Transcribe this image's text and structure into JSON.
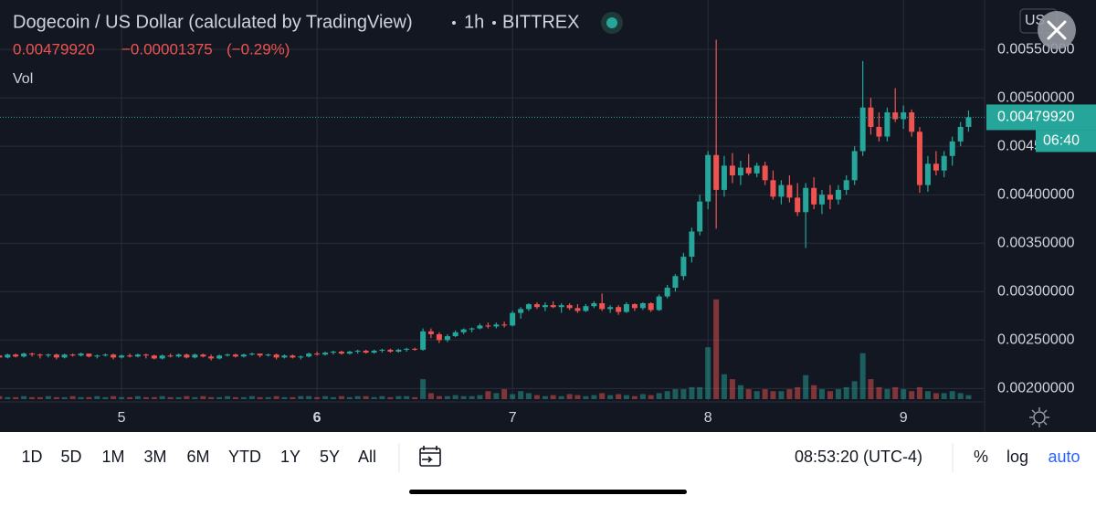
{
  "header": {
    "title": "Dogecoin / US Dollar (calculated by TradingView)",
    "interval": "1h",
    "exchange": "BITTREX",
    "change": "−0.00001375",
    "change_pct": "(−0.29%)",
    "volume_label": "Vol",
    "currency": "US",
    "countdown": "06:40"
  },
  "toolbar": {
    "ranges": [
      "1D",
      "5D",
      "1M",
      "3M",
      "6M",
      "YTD",
      "1Y",
      "5Y",
      "All"
    ],
    "clock": "08:53:20 (UTC-4)",
    "scale_options": [
      "%",
      "log",
      "auto"
    ]
  },
  "chart_data": {
    "type": "candlestick",
    "grid": true,
    "up_color": "#26a69a",
    "down_color": "#ef5350",
    "xlim": [
      4.378,
      9.415
    ],
    "xticks": [
      5,
      6,
      7,
      8,
      9
    ],
    "ylim": [
      0.00189,
      0.00601
    ],
    "yticks": [
      {
        "value": 0.002,
        "label": "0.00200000"
      },
      {
        "value": 0.0025,
        "label": "0.00250000"
      },
      {
        "value": 0.003,
        "label": "0.00300000"
      },
      {
        "value": 0.0035,
        "label": "0.00350000"
      },
      {
        "value": 0.004,
        "label": "0.00400000"
      },
      {
        "value": 0.0045,
        "label": "0.00450000"
      },
      {
        "value": 0.005,
        "label": "0.00500000"
      },
      {
        "value": 0.0055,
        "label": "0.00550000"
      }
    ],
    "last_price": {
      "value": 0.0047992,
      "label": "0.00479920"
    },
    "y2lim": [
      0,
      400
    ],
    "x": [
      4.375,
      4.417,
      4.458,
      4.5,
      4.542,
      4.583,
      4.625,
      4.667,
      4.708,
      4.75,
      4.792,
      4.833,
      4.875,
      4.917,
      4.958,
      5,
      5.042,
      5.083,
      5.125,
      5.167,
      5.208,
      5.25,
      5.292,
      5.333,
      5.375,
      5.417,
      5.458,
      5.5,
      5.542,
      5.583,
      5.625,
      5.667,
      5.708,
      5.75,
      5.792,
      5.833,
      5.875,
      5.917,
      5.958,
      6,
      6.042,
      6.083,
      6.125,
      6.167,
      6.208,
      6.25,
      6.292,
      6.333,
      6.375,
      6.417,
      6.458,
      6.5,
      6.542,
      6.583,
      6.625,
      6.667,
      6.708,
      6.75,
      6.792,
      6.833,
      6.875,
      6.917,
      6.958,
      7,
      7.042,
      7.083,
      7.125,
      7.167,
      7.208,
      7.25,
      7.292,
      7.333,
      7.375,
      7.417,
      7.458,
      7.5,
      7.542,
      7.583,
      7.625,
      7.667,
      7.708,
      7.75,
      7.792,
      7.833,
      7.875,
      7.917,
      7.958,
      8,
      8.042,
      8.083,
      8.125,
      8.167,
      8.208,
      8.25,
      8.292,
      8.333,
      8.375,
      8.417,
      8.458,
      8.5,
      8.542,
      8.583,
      8.625,
      8.667,
      8.708,
      8.75,
      8.792,
      8.833,
      8.875,
      8.917,
      8.958,
      9,
      9.042,
      9.083,
      9.125,
      9.167,
      9.208,
      9.25,
      9.292,
      9.333
    ],
    "ohlc": [
      [
        0.00234,
        0.00236,
        0.0023,
        0.00232
      ],
      [
        0.00232,
        0.00236,
        0.00231,
        0.00235
      ],
      [
        0.00235,
        0.00236,
        0.00232,
        0.00233
      ],
      [
        0.00233,
        0.00237,
        0.00232,
        0.00236
      ],
      [
        0.00236,
        0.00237,
        0.00233,
        0.00235
      ],
      [
        0.00235,
        0.00236,
        0.00231,
        0.00234
      ],
      [
        0.00234,
        0.00236,
        0.00232,
        0.00235
      ],
      [
        0.00235,
        0.00236,
        0.0023,
        0.00232
      ],
      [
        0.00232,
        0.00236,
        0.00231,
        0.00235
      ],
      [
        0.00235,
        0.00236,
        0.00233,
        0.00234
      ],
      [
        0.00234,
        0.00237,
        0.00233,
        0.00236
      ],
      [
        0.00236,
        0.00236,
        0.00232,
        0.00233
      ],
      [
        0.00233,
        0.00235,
        0.00231,
        0.00234
      ],
      [
        0.00234,
        0.00236,
        0.00233,
        0.00235
      ],
      [
        0.00235,
        0.00236,
        0.0023,
        0.00232
      ],
      [
        0.00232,
        0.00235,
        0.00231,
        0.00234
      ],
      [
        0.00234,
        0.00236,
        0.00232,
        0.00233
      ],
      [
        0.00233,
        0.00236,
        0.00232,
        0.00235
      ],
      [
        0.00235,
        0.00236,
        0.00231,
        0.00234
      ],
      [
        0.00234,
        0.00235,
        0.0023,
        0.00231
      ],
      [
        0.00231,
        0.00235,
        0.0023,
        0.00234
      ],
      [
        0.00234,
        0.00236,
        0.00232,
        0.00233
      ],
      [
        0.00233,
        0.00236,
        0.00232,
        0.00235
      ],
      [
        0.00235,
        0.00236,
        0.00231,
        0.00232
      ],
      [
        0.00232,
        0.00236,
        0.00231,
        0.00235
      ],
      [
        0.00235,
        0.00236,
        0.00232,
        0.00233
      ],
      [
        0.00233,
        0.00235,
        0.00229,
        0.00231
      ],
      [
        0.00231,
        0.00235,
        0.0023,
        0.00234
      ],
      [
        0.00234,
        0.00236,
        0.00233,
        0.00235
      ],
      [
        0.00235,
        0.00236,
        0.00232,
        0.00233
      ],
      [
        0.00233,
        0.00236,
        0.00232,
        0.00235
      ],
      [
        0.00235,
        0.00237,
        0.00234,
        0.00236
      ],
      [
        0.00236,
        0.00236,
        0.00232,
        0.00234
      ],
      [
        0.00234,
        0.00236,
        0.00233,
        0.00235
      ],
      [
        0.00235,
        0.00236,
        0.0023,
        0.00232
      ],
      [
        0.00232,
        0.00235,
        0.00231,
        0.00234
      ],
      [
        0.00234,
        0.00235,
        0.00231,
        0.00232
      ],
      [
        0.00232,
        0.00234,
        0.0023,
        0.00233
      ],
      [
        0.00233,
        0.00237,
        0.00232,
        0.00236
      ],
      [
        0.00236,
        0.00238,
        0.00234,
        0.00235
      ],
      [
        0.00235,
        0.00238,
        0.00234,
        0.00237
      ],
      [
        0.00237,
        0.00239,
        0.00235,
        0.00238
      ],
      [
        0.00238,
        0.00239,
        0.00235,
        0.00236
      ],
      [
        0.00236,
        0.00239,
        0.00235,
        0.00238
      ],
      [
        0.00238,
        0.0024,
        0.00236,
        0.00239
      ],
      [
        0.00239,
        0.0024,
        0.00236,
        0.00237
      ],
      [
        0.00237,
        0.0024,
        0.00236,
        0.00239
      ],
      [
        0.00239,
        0.00241,
        0.00237,
        0.0024
      ],
      [
        0.0024,
        0.00241,
        0.00237,
        0.00238
      ],
      [
        0.00238,
        0.00241,
        0.00237,
        0.0024
      ],
      [
        0.0024,
        0.00242,
        0.00238,
        0.00241
      ],
      [
        0.00241,
        0.00242,
        0.00239,
        0.0024
      ],
      [
        0.0024,
        0.00262,
        0.00239,
        0.00259
      ],
      [
        0.00259,
        0.00262,
        0.00252,
        0.00256
      ],
      [
        0.00256,
        0.00258,
        0.00247,
        0.0025
      ],
      [
        0.0025,
        0.00256,
        0.00248,
        0.00254
      ],
      [
        0.00254,
        0.0026,
        0.00253,
        0.00258
      ],
      [
        0.00258,
        0.00262,
        0.00256,
        0.00261
      ],
      [
        0.00261,
        0.00263,
        0.00258,
        0.00262
      ],
      [
        0.00262,
        0.00267,
        0.00261,
        0.00265
      ],
      [
        0.00265,
        0.00268,
        0.00262,
        0.00264
      ],
      [
        0.00264,
        0.00268,
        0.00262,
        0.00266
      ],
      [
        0.00266,
        0.00269,
        0.00263,
        0.00265
      ],
      [
        0.00265,
        0.0028,
        0.00264,
        0.00278
      ],
      [
        0.00278,
        0.00284,
        0.00272,
        0.00282
      ],
      [
        0.00282,
        0.00288,
        0.0028,
        0.00287
      ],
      [
        0.00287,
        0.00289,
        0.00282,
        0.00284
      ],
      [
        0.00284,
        0.00289,
        0.0028,
        0.00286
      ],
      [
        0.00286,
        0.0029,
        0.00283,
        0.00284
      ],
      [
        0.00284,
        0.00288,
        0.00278,
        0.00286
      ],
      [
        0.00286,
        0.00288,
        0.00281,
        0.00283
      ],
      [
        0.00283,
        0.00287,
        0.00278,
        0.0028
      ],
      [
        0.0028,
        0.00287,
        0.00279,
        0.00285
      ],
      [
        0.00285,
        0.0029,
        0.00283,
        0.00288
      ],
      [
        0.00288,
        0.00298,
        0.0028,
        0.00282
      ],
      [
        0.00282,
        0.00286,
        0.00278,
        0.00284
      ],
      [
        0.00284,
        0.00286,
        0.00276,
        0.00279
      ],
      [
        0.00279,
        0.00289,
        0.00278,
        0.00287
      ],
      [
        0.00287,
        0.00288,
        0.0028,
        0.00283
      ],
      [
        0.00283,
        0.00289,
        0.00281,
        0.00288
      ],
      [
        0.00288,
        0.00289,
        0.00279,
        0.00281
      ],
      [
        0.00281,
        0.00297,
        0.0028,
        0.00295
      ],
      [
        0.00295,
        0.00307,
        0.00293,
        0.00304
      ],
      [
        0.00304,
        0.00318,
        0.003,
        0.00316
      ],
      [
        0.00316,
        0.0034,
        0.00312,
        0.00336
      ],
      [
        0.00336,
        0.00366,
        0.0033,
        0.00362
      ],
      [
        0.00362,
        0.004,
        0.00358,
        0.00393
      ],
      [
        0.00393,
        0.00445,
        0.00385,
        0.00441
      ],
      [
        0.00441,
        0.0056,
        0.00365,
        0.00405
      ],
      [
        0.00405,
        0.0044,
        0.00398,
        0.0043
      ],
      [
        0.0043,
        0.00443,
        0.00412,
        0.0042
      ],
      [
        0.0042,
        0.00435,
        0.0041,
        0.00428
      ],
      [
        0.00428,
        0.00442,
        0.0042,
        0.00422
      ],
      [
        0.00422,
        0.00433,
        0.00418,
        0.0043
      ],
      [
        0.0043,
        0.00434,
        0.0041,
        0.00415
      ],
      [
        0.00415,
        0.00425,
        0.00395,
        0.00398
      ],
      [
        0.00398,
        0.00415,
        0.0039,
        0.0041
      ],
      [
        0.0041,
        0.0042,
        0.00392,
        0.00397
      ],
      [
        0.00397,
        0.00412,
        0.00378,
        0.00382
      ],
      [
        0.00382,
        0.00412,
        0.00345,
        0.00407
      ],
      [
        0.00407,
        0.00418,
        0.00385,
        0.0039
      ],
      [
        0.0039,
        0.00405,
        0.0038,
        0.004
      ],
      [
        0.004,
        0.0041,
        0.00385,
        0.00395
      ],
      [
        0.00395,
        0.0041,
        0.0039,
        0.00405
      ],
      [
        0.00405,
        0.0042,
        0.004,
        0.00415
      ],
      [
        0.00415,
        0.0045,
        0.0041,
        0.00445
      ],
      [
        0.00445,
        0.00538,
        0.0044,
        0.0049
      ],
      [
        0.0049,
        0.005,
        0.00462,
        0.0047
      ],
      [
        0.0047,
        0.00485,
        0.00455,
        0.0046
      ],
      [
        0.0046,
        0.0049,
        0.00455,
        0.00485
      ],
      [
        0.00485,
        0.0051,
        0.00475,
        0.00478
      ],
      [
        0.00478,
        0.00492,
        0.00468,
        0.00485
      ],
      [
        0.00485,
        0.00488,
        0.0046,
        0.00465
      ],
      [
        0.00465,
        0.0047,
        0.00402,
        0.0041
      ],
      [
        0.0041,
        0.0044,
        0.00403,
        0.00432
      ],
      [
        0.00432,
        0.00445,
        0.0042,
        0.00425
      ],
      [
        0.00425,
        0.00445,
        0.00418,
        0.0044
      ],
      [
        0.0044,
        0.0046,
        0.0043,
        0.00455
      ],
      [
        0.00455,
        0.00475,
        0.0045,
        0.0047
      ],
      [
        0.0047,
        0.00487,
        0.00465,
        0.0047992
      ]
    ],
    "volume": {
      "axis": "y2",
      "values": [
        3,
        2,
        2,
        3,
        2,
        2,
        3,
        2,
        2,
        3,
        2,
        2,
        3,
        2,
        3,
        2,
        2,
        3,
        2,
        2,
        3,
        2,
        2,
        3,
        2,
        3,
        2,
        2,
        3,
        2,
        2,
        3,
        2,
        2,
        3,
        2,
        2,
        3,
        3,
        2,
        3,
        2,
        3,
        2,
        3,
        3,
        2,
        3,
        2,
        3,
        3,
        2,
        20,
        6,
        3,
        3,
        4,
        3,
        3,
        4,
        8,
        6,
        10,
        5,
        8,
        6,
        4,
        3,
        4,
        3,
        5,
        4,
        3,
        4,
        6,
        4,
        5,
        4,
        3,
        5,
        4,
        6,
        8,
        10,
        10,
        12,
        12,
        52,
        100,
        25,
        20,
        14,
        10,
        8,
        10,
        8,
        8,
        10,
        12,
        24,
        14,
        10,
        8,
        10,
        12,
        18,
        46,
        20,
        12,
        10,
        12,
        10,
        8,
        12,
        8,
        6,
        6,
        8,
        6,
        4
      ]
    }
  }
}
